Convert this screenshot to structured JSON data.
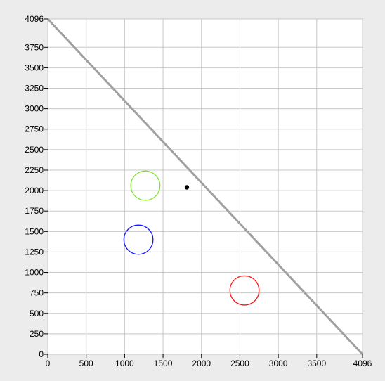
{
  "chart_data": {
    "type": "scatter",
    "title": "",
    "xlabel": "",
    "ylabel": "",
    "xlim": [
      0,
      4096
    ],
    "ylim": [
      0,
      4096
    ],
    "x_ticks": [
      "0",
      "500",
      "1000",
      "1500",
      "2000",
      "2500",
      "3000",
      "3500",
      "4096"
    ],
    "y_ticks": [
      "4096",
      "3750",
      "3500",
      "3250",
      "3000",
      "2750",
      "2500",
      "2250",
      "2000",
      "1750",
      "1500",
      "1250",
      "1000",
      "750",
      "500",
      "250",
      "0"
    ],
    "grid": true,
    "reference_line": {
      "from": [
        0,
        4096
      ],
      "to": [
        4096,
        0
      ],
      "color": "#a0a0a0"
    },
    "circles": [
      {
        "x": 1270,
        "y": 2060,
        "radius": 190,
        "color": "#7fe030"
      },
      {
        "x": 1180,
        "y": 1400,
        "radius": 190,
        "color": "#1414ff"
      },
      {
        "x": 2560,
        "y": 780,
        "radius": 190,
        "color": "#ff1414"
      }
    ],
    "points": [
      {
        "x": 1810,
        "y": 2040,
        "color": "#000000"
      }
    ]
  }
}
